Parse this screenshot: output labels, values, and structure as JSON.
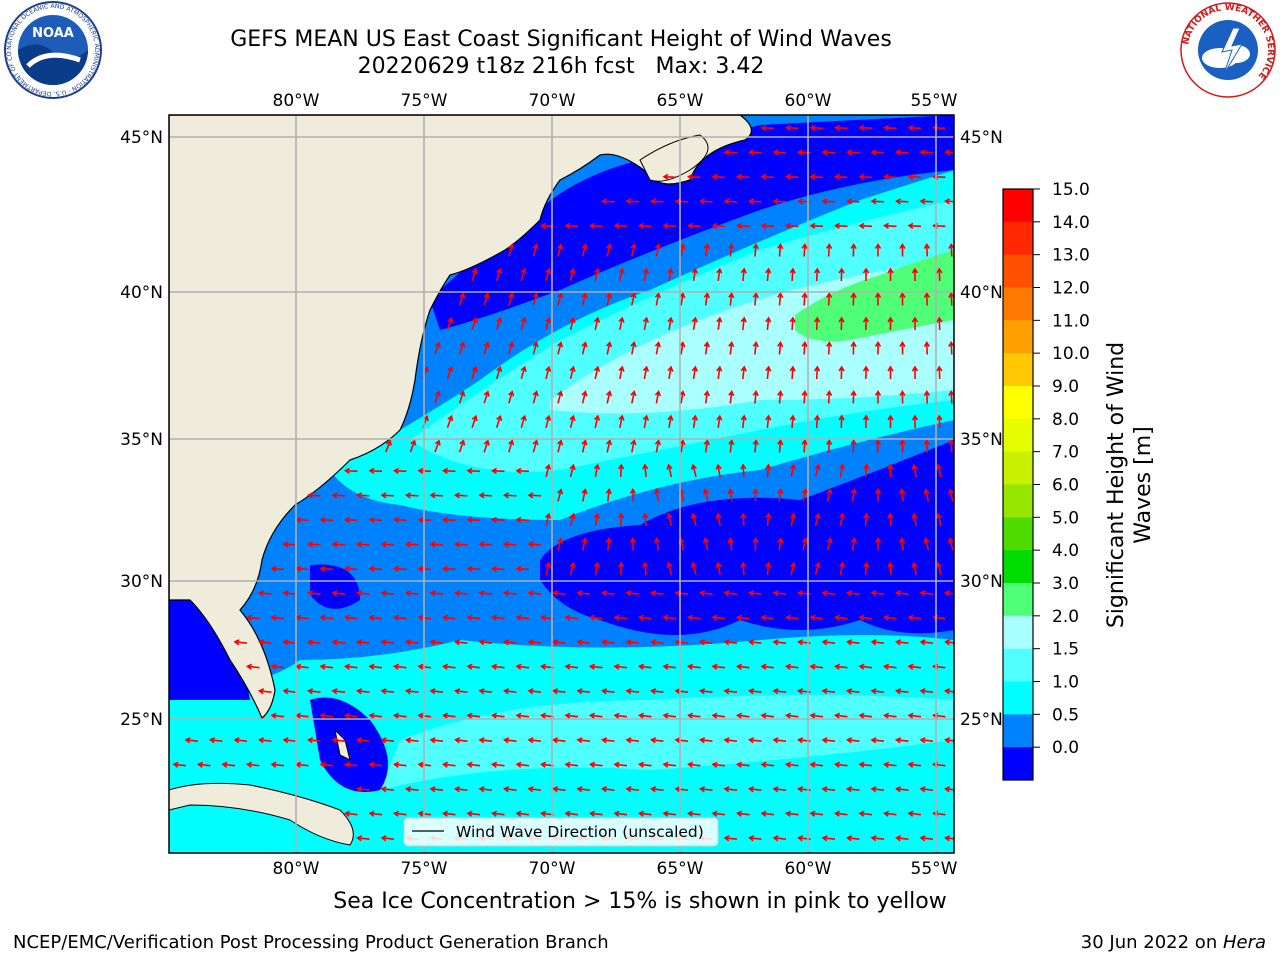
{
  "title_line1": "GEFS MEAN US East Coast Significant Height of Wind Waves",
  "title_line2": "20220629 t18z 216h fcst   Max: 3.42",
  "subtitle": "Sea Ice Concentration > 15% is shown in pink to yellow",
  "footer_left": "NCEP/EMC/Verification Post Processing Product Generation Branch",
  "footer_right_date": "30 Jun 2022 on ",
  "footer_right_machine": "Hera",
  "logos": {
    "noaa": {
      "center_text": "NOAA",
      "ring_text": "NATIONAL OCEANIC AND ATMOSPHERIC ADMINISTRATION · U.S. DEPARTMENT OF COMMERCE"
    },
    "nws": {
      "ring_text": "NATIONAL WEATHER SERVICE"
    }
  },
  "map": {
    "lon_labels": [
      "80°W",
      "75°W",
      "70°W",
      "65°W",
      "60°W",
      "55°W"
    ],
    "lat_labels": [
      "45°N",
      "40°N",
      "35°N",
      "30°N",
      "25°N"
    ],
    "legend_label": "Wind Wave Direction (unscaled)",
    "arrow_color": "#ff0000",
    "land_color": "#efecdc"
  },
  "colorbar": {
    "label_line1": "Significant Height of Wind",
    "label_line2": "Waves [m]",
    "ticks": [
      "15.0",
      "14.0",
      "13.0",
      "12.0",
      "11.0",
      "10.0",
      "9.0",
      "8.0",
      "7.0",
      "6.0",
      "5.0",
      "4.0",
      "3.0",
      "2.0",
      "1.5",
      "1.0",
      "0.5",
      "0.0"
    ],
    "colors": [
      "#ff0000",
      "#ff2800",
      "#ff5000",
      "#ff7800",
      "#ffa000",
      "#ffc800",
      "#ffff00",
      "#e6ff00",
      "#c8f000",
      "#96e600",
      "#50dc00",
      "#00dc00",
      "#50ff78",
      "#aaffff",
      "#50ffff",
      "#00ffff",
      "#0082ff",
      "#0000ff"
    ]
  }
}
